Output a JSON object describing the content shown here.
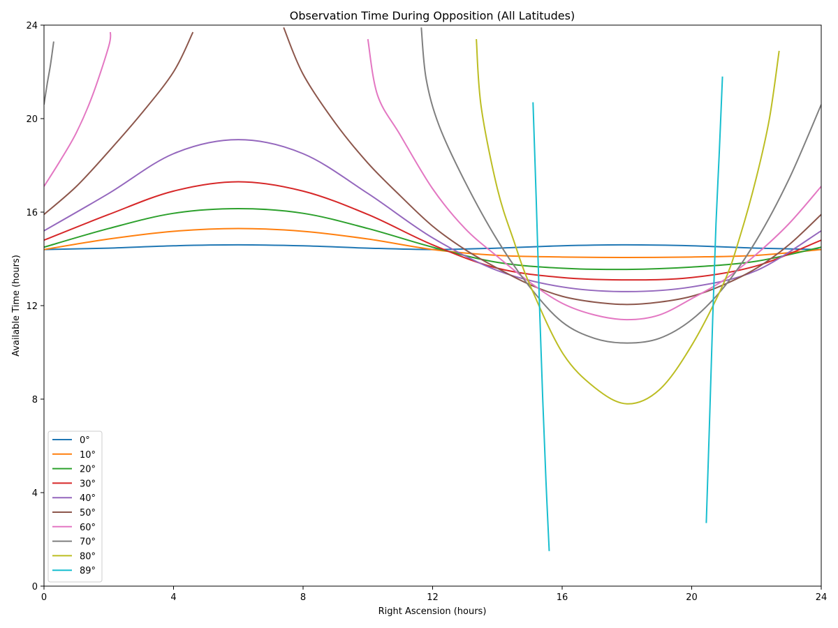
{
  "chart_data": {
    "type": "line",
    "title": "Observation Time During Opposition (All Latitudes)",
    "xlabel": "Right Ascension (hours)",
    "ylabel": "Available Time (hours)",
    "xlim": [
      0,
      24
    ],
    "ylim": [
      0,
      24
    ],
    "xticks": [
      0,
      4,
      8,
      12,
      16,
      20,
      24
    ],
    "yticks": [
      0,
      4,
      8,
      12,
      16,
      20,
      24
    ],
    "grid": false,
    "legend_position": "lower-left",
    "series": [
      {
        "name": "0°",
        "color": "#1f77b4",
        "segments": [
          {
            "x": [
              0,
              2,
              4,
              6,
              8,
              10,
              12,
              14,
              16,
              18,
              20,
              22,
              24
            ],
            "y": [
              14.4,
              14.46,
              14.56,
              14.6,
              14.56,
              14.46,
              14.4,
              14.46,
              14.56,
              14.6,
              14.56,
              14.46,
              14.4
            ]
          }
        ]
      },
      {
        "name": "10°",
        "color": "#ff7f0e",
        "segments": [
          {
            "x": [
              0,
              2,
              4,
              6,
              8,
              10,
              12,
              14,
              16,
              18,
              20,
              22,
              24
            ],
            "y": [
              14.4,
              14.85,
              15.18,
              15.3,
              15.18,
              14.85,
              14.4,
              14.15,
              14.08,
              14.06,
              14.08,
              14.15,
              14.4
            ]
          }
        ]
      },
      {
        "name": "20°",
        "color": "#2ca02c",
        "segments": [
          {
            "x": [
              0,
              2,
              4,
              6,
              8,
              10,
              12,
              14,
              16,
              18,
              20,
              22,
              24
            ],
            "y": [
              14.5,
              15.3,
              15.95,
              16.15,
              15.95,
              15.3,
              14.5,
              13.85,
              13.6,
              13.55,
              13.65,
              13.9,
              14.5
            ]
          }
        ]
      },
      {
        "name": "30°",
        "color": "#d62728",
        "segments": [
          {
            "x": [
              0,
              2,
              4,
              6,
              8,
              10,
              12,
              14,
              16,
              18,
              20,
              22,
              24
            ],
            "y": [
              14.8,
              15.9,
              16.9,
              17.3,
              16.9,
              15.9,
              14.6,
              13.6,
              13.2,
              13.1,
              13.2,
              13.7,
              14.8
            ]
          }
        ]
      },
      {
        "name": "40°",
        "color": "#9467bd",
        "segments": [
          {
            "x": [
              0,
              2,
              4,
              6,
              8,
              10,
              12,
              14,
              16,
              18,
              20,
              22,
              24
            ],
            "y": [
              15.2,
              16.8,
              18.5,
              19.1,
              18.5,
              16.8,
              14.9,
              13.5,
              12.8,
              12.6,
              12.8,
              13.5,
              15.2
            ]
          }
        ]
      },
      {
        "name": "50°",
        "color": "#8c564b",
        "segments": [
          {
            "x": [
              0,
              1,
              2,
              3,
              4,
              4.6
            ],
            "y": [
              15.9,
              17.1,
              18.6,
              20.2,
              22.0,
              23.7
            ]
          },
          {
            "x": [
              7.4,
              8,
              9,
              10,
              11,
              12,
              13,
              14,
              15,
              16,
              17,
              18,
              19,
              20,
              21,
              22,
              23,
              24
            ],
            "y": [
              23.9,
              21.9,
              19.8,
              18.1,
              16.7,
              15.4,
              14.4,
              13.6,
              12.9,
              12.4,
              12.15,
              12.05,
              12.15,
              12.4,
              12.9,
              13.6,
              14.6,
              15.9
            ]
          }
        ]
      },
      {
        "name": "60°",
        "color": "#e377c2",
        "segments": [
          {
            "x": [
              0,
              0.5,
              1,
              1.5,
              2,
              2.05
            ],
            "y": [
              17.1,
              18.2,
              19.4,
              21.0,
              23.1,
              23.7
            ]
          },
          {
            "x": [
              10,
              10.3,
              11,
              12,
              13,
              14,
              15,
              16,
              17,
              18,
              19,
              20,
              21,
              22,
              23,
              24
            ],
            "y": [
              23.4,
              21.0,
              19.3,
              17.0,
              15.3,
              14.1,
              13.0,
              12.1,
              11.6,
              11.4,
              11.6,
              12.3,
              13.1,
              14.2,
              15.5,
              17.1
            ]
          }
        ]
      },
      {
        "name": "70°",
        "color": "#7f7f7f",
        "segments": [
          {
            "x": [
              0,
              0.1,
              0.2,
              0.3
            ],
            "y": [
              20.6,
              21.5,
              22.3,
              23.3
            ]
          },
          {
            "x": [
              11.65,
              11.8,
              12.2,
              13,
              14,
              15,
              16,
              17,
              18,
              19,
              20,
              21,
              22,
              23,
              24
            ],
            "y": [
              23.9,
              21.7,
              19.7,
              17.3,
              14.8,
              12.8,
              11.3,
              10.6,
              10.4,
              10.6,
              11.4,
              12.8,
              14.8,
              17.4,
              20.6
            ]
          }
        ]
      },
      {
        "name": "80°",
        "color": "#bcbd22",
        "segments": [
          {
            "x": [
              13.35,
              13.5,
              14,
              14.5,
              15,
              16,
              17,
              18,
              19,
              20,
              21,
              21.5,
              22,
              22.4,
              22.7
            ],
            "y": [
              23.4,
              20.5,
              17.0,
              14.8,
              12.9,
              10.0,
              8.5,
              7.8,
              8.4,
              10.3,
              13.0,
              15.0,
              17.5,
              20.0,
              22.9
            ]
          }
        ]
      },
      {
        "name": "89°",
        "color": "#17becf",
        "segments": [
          {
            "x": [
              15.1,
              15.2,
              15.3,
              15.4,
              15.5,
              15.6
            ],
            "y": [
              20.7,
              16.5,
              12.0,
              8.0,
              4.5,
              1.5
            ]
          },
          {
            "x": [
              20.45,
              20.55,
              20.65,
              20.75,
              20.85,
              20.95
            ],
            "y": [
              2.7,
              7.0,
              11.5,
              15.5,
              18.5,
              21.8
            ]
          }
        ]
      }
    ]
  }
}
